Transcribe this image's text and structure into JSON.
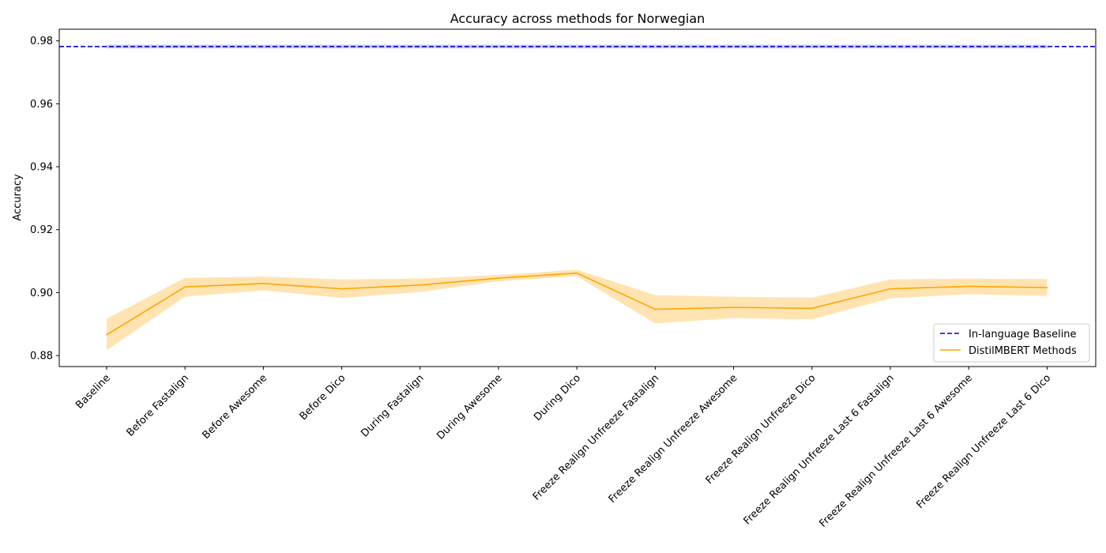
{
  "chart_data": {
    "type": "line",
    "title": "Accuracy across methods for Norwegian",
    "xlabel": "",
    "ylabel": "Accuracy",
    "ylim": [
      0.8765,
      0.9837
    ],
    "yticks": [
      0.88,
      0.9,
      0.92,
      0.94,
      0.96,
      0.98
    ],
    "ytick_labels": [
      "0.88",
      "0.90",
      "0.92",
      "0.94",
      "0.96",
      "0.98"
    ],
    "categories": [
      "Baseline",
      "Before Fastalign",
      "Before Awesome",
      "Before Dico",
      "During Fastalign",
      "During Awesome",
      "During Dico",
      "Freeze Realign Unfreeze Fastalign",
      "Freeze Realign Unfreeze Awesome",
      "Freeze Realign Unfreeze Dico",
      "Freeze Realign Unfreeze Last 6 Fastalign",
      "Freeze Realign Unfreeze Last 6 Awesome",
      "Freeze Realign Unfreeze Last 6 Dico"
    ],
    "series": [
      {
        "name": "DistilMBERT Methods",
        "color": "#ffa500",
        "style": "solid",
        "values": [
          0.8866,
          0.9018,
          0.9029,
          0.9012,
          0.9024,
          0.9046,
          0.9062,
          0.8947,
          0.8953,
          0.895,
          0.9012,
          0.902,
          0.9016
        ],
        "lower": [
          0.8817,
          0.8987,
          0.9007,
          0.8983,
          0.9002,
          0.9036,
          0.9052,
          0.8902,
          0.8919,
          0.8915,
          0.8982,
          0.8995,
          0.8989
        ],
        "upper": [
          0.8917,
          0.9047,
          0.9051,
          0.9042,
          0.9045,
          0.9056,
          0.9073,
          0.8992,
          0.8987,
          0.8984,
          0.9042,
          0.9045,
          0.9043
        ]
      }
    ],
    "baseline": {
      "name": "In-language Baseline",
      "color": "#0000cd",
      "style": "dashed",
      "value": 0.9782,
      "band_lower": 0.9776,
      "band_upper": 0.9788
    },
    "legend_position": "bottom-right",
    "grid": false
  }
}
